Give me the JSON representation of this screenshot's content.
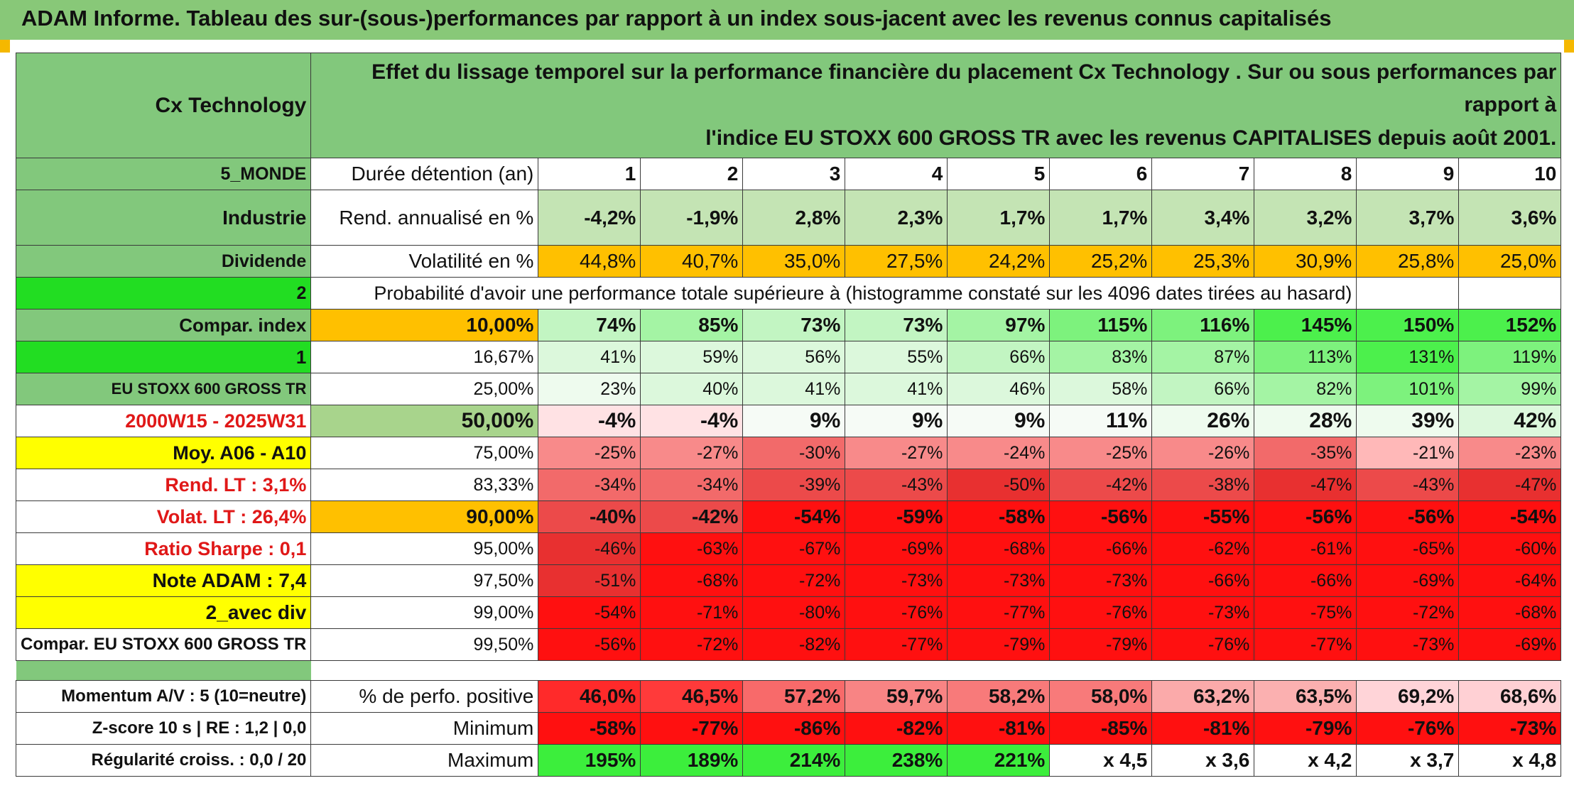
{
  "report_title": "ADAM Informe. Tableau des sur-(sous-)performances par rapport à un index sous-jacent avec les revenus connus capitalisés",
  "colors": {
    "header_green": "#82c87c",
    "bright_green": "#22dd22",
    "orange": "#ffc000",
    "yellow": "#ffff00",
    "red_text": "#e01818"
  },
  "left_panel": {
    "asset_name": "Cx Technology",
    "region": "5_MONDE",
    "sector": "Industrie",
    "dividend_label": "Dividende",
    "dividend_value": "2",
    "compar_index_label": "Compar. index",
    "compar_index_value": "1",
    "index_name": "EU STOXX 600 GROSS TR",
    "period": "2000W15 - 2025W31",
    "moyenne": "Moy. A06 - A10",
    "rend_lt": "Rend. LT :   3,1%",
    "volat_lt": "Volat. LT :   26,4%",
    "ratio_sharpe": "Ratio Sharpe :    0,1",
    "note_adam": "Note ADAM : 7,4",
    "avec_div": "2_avec div",
    "compar_full": "Compar. EU STOXX 600 GROSS TR"
  },
  "description": {
    "line1": "Effet du lissage temporel sur la performance financière du placement Cx Technology . Sur ou sous performances par rapport à",
    "line2": "l'indice EU STOXX 600 GROSS TR avec les revenus CAPITALISES depuis août 2001."
  },
  "labels": {
    "duree": "Durée détention (an)",
    "rend": "Rend. annualisé en %",
    "vol": "Volatilité en %",
    "probabilite": "Probabilité d'avoir une performance totale supérieure à (histogramme constaté sur les 4096 dates tirées au hasard)",
    "positive": "% de perfo. positive",
    "minimum": "Minimum",
    "maximum": "Maximum"
  },
  "years": [
    "1",
    "2",
    "3",
    "4",
    "5",
    "6",
    "7",
    "8",
    "9",
    "10"
  ],
  "rend": [
    "-4,2%",
    "-1,9%",
    "2,8%",
    "2,3%",
    "1,7%",
    "1,7%",
    "3,4%",
    "3,2%",
    "3,7%",
    "3,6%"
  ],
  "vol": [
    "44,8%",
    "40,7%",
    "35,0%",
    "27,5%",
    "24,2%",
    "25,2%",
    "25,3%",
    "30,9%",
    "25,8%",
    "25,0%"
  ],
  "percentile_rows": [
    {
      "p": "10,00%",
      "v": [
        "74%",
        "85%",
        "73%",
        "73%",
        "97%",
        "115%",
        "116%",
        "145%",
        "150%",
        "152%"
      ]
    },
    {
      "p": "16,67%",
      "v": [
        "41%",
        "59%",
        "56%",
        "55%",
        "66%",
        "83%",
        "87%",
        "113%",
        "131%",
        "119%"
      ]
    },
    {
      "p": "25,00%",
      "v": [
        "23%",
        "40%",
        "41%",
        "41%",
        "46%",
        "58%",
        "66%",
        "82%",
        "101%",
        "99%"
      ]
    },
    {
      "p": "50,00%",
      "v": [
        "-4%",
        "-4%",
        "9%",
        "9%",
        "9%",
        "11%",
        "26%",
        "28%",
        "39%",
        "42%"
      ]
    },
    {
      "p": "75,00%",
      "v": [
        "-25%",
        "-27%",
        "-30%",
        "-27%",
        "-24%",
        "-25%",
        "-26%",
        "-35%",
        "-21%",
        "-23%"
      ]
    },
    {
      "p": "83,33%",
      "v": [
        "-34%",
        "-34%",
        "-39%",
        "-43%",
        "-50%",
        "-42%",
        "-38%",
        "-47%",
        "-43%",
        "-47%"
      ]
    },
    {
      "p": "90,00%",
      "v": [
        "-40%",
        "-42%",
        "-54%",
        "-59%",
        "-58%",
        "-56%",
        "-55%",
        "-56%",
        "-56%",
        "-54%"
      ]
    },
    {
      "p": "95,00%",
      "v": [
        "-46%",
        "-63%",
        "-67%",
        "-69%",
        "-68%",
        "-66%",
        "-62%",
        "-61%",
        "-65%",
        "-60%"
      ]
    },
    {
      "p": "97,50%",
      "v": [
        "-51%",
        "-68%",
        "-72%",
        "-73%",
        "-73%",
        "-73%",
        "-66%",
        "-66%",
        "-69%",
        "-64%"
      ]
    },
    {
      "p": "99,00%",
      "v": [
        "-54%",
        "-71%",
        "-80%",
        "-76%",
        "-77%",
        "-76%",
        "-73%",
        "-75%",
        "-72%",
        "-68%"
      ]
    },
    {
      "p": "99,50%",
      "v": [
        "-56%",
        "-72%",
        "-82%",
        "-77%",
        "-79%",
        "-79%",
        "-76%",
        "-77%",
        "-73%",
        "-69%"
      ]
    }
  ],
  "footer": {
    "momentum": "Momentum A/V : 5 (10=neutre)",
    "zscore": "Z-score 10 s | RE : 1,2 | 0,0",
    "regularite": "Régularité croiss. : 0,0 / 20",
    "positive": [
      "46,0%",
      "46,5%",
      "57,2%",
      "59,7%",
      "58,2%",
      "58,0%",
      "63,2%",
      "63,5%",
      "69,2%",
      "68,6%"
    ],
    "minimum": [
      "-58%",
      "-77%",
      "-86%",
      "-82%",
      "-81%",
      "-85%",
      "-81%",
      "-79%",
      "-76%",
      "-73%"
    ],
    "maximum": [
      "195%",
      "189%",
      "214%",
      "238%",
      "221%",
      "x 4,5",
      "x 3,6",
      "x 4,2",
      "x 3,7",
      "x 4,8"
    ]
  }
}
